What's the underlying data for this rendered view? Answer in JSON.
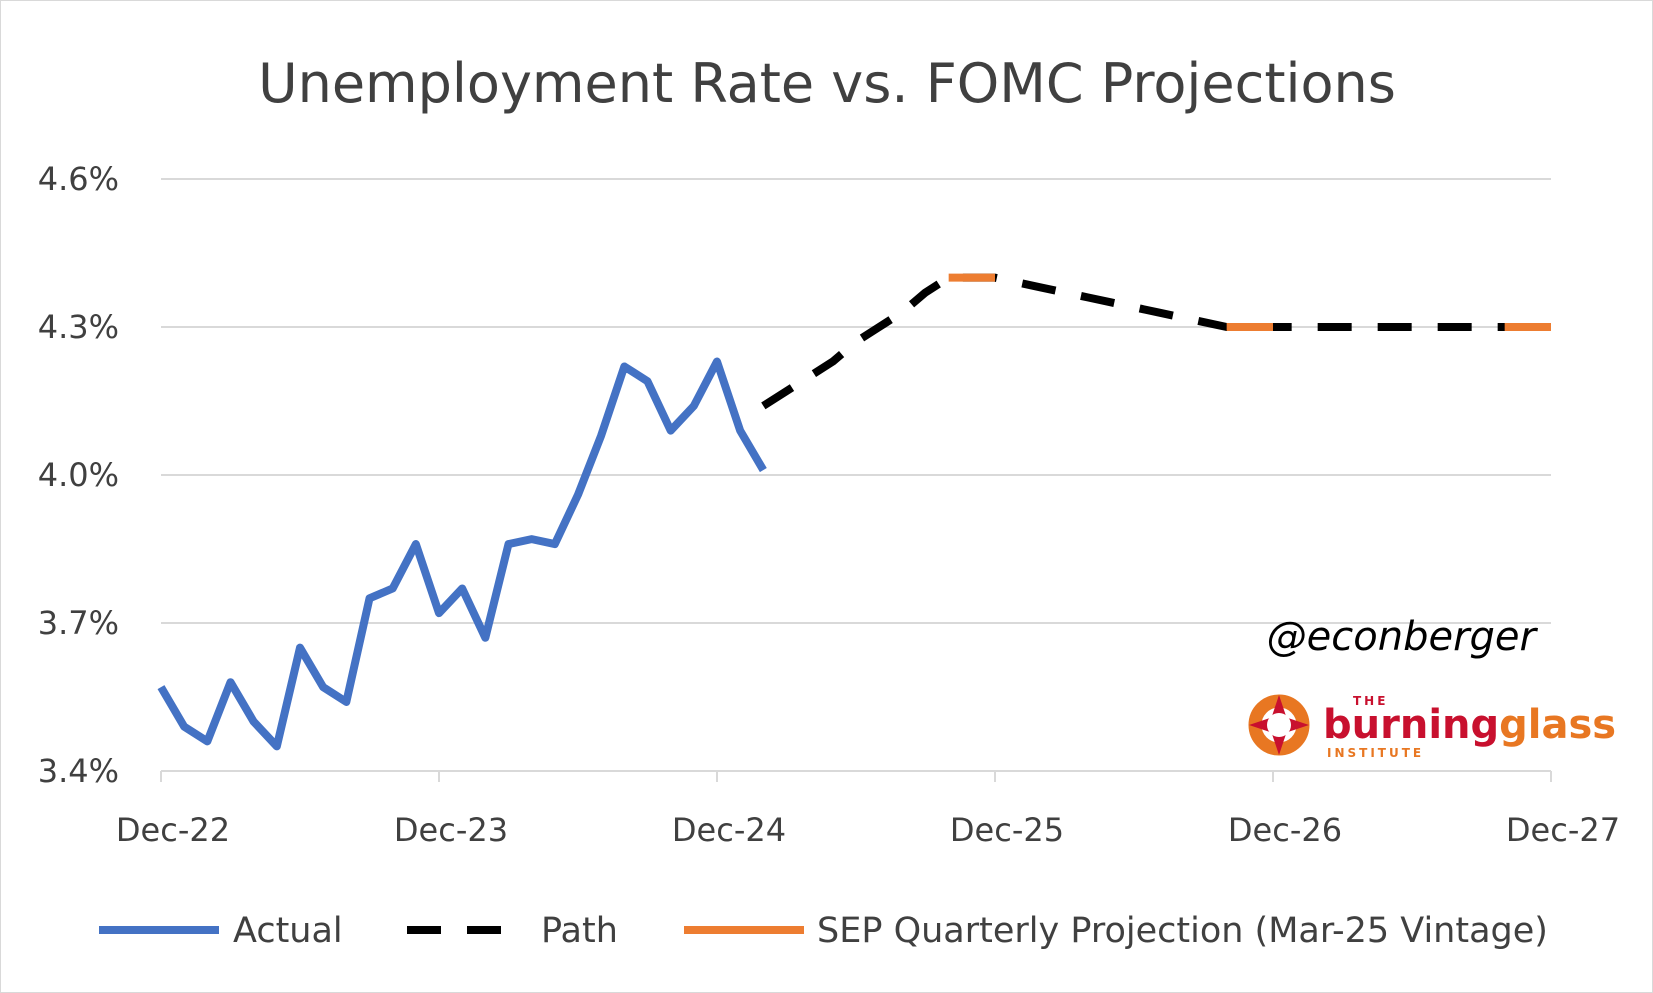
{
  "chart_data": {
    "type": "line",
    "title": "Unemployment Rate vs. FOMC Projections",
    "xlabel": "",
    "ylabel": "",
    "ylim": [
      3.4,
      4.6
    ],
    "y_ticks": [
      {
        "value": 3.4,
        "label": "3.4%"
      },
      {
        "value": 3.7,
        "label": "3.7%"
      },
      {
        "value": 4.0,
        "label": "4.0%"
      },
      {
        "value": 4.3,
        "label": "4.3%"
      },
      {
        "value": 4.6,
        "label": "4.6%"
      }
    ],
    "x_ticks": [
      {
        "month": 0,
        "label": "Dec-22"
      },
      {
        "month": 12,
        "label": "Dec-23"
      },
      {
        "month": 24,
        "label": "Dec-24"
      },
      {
        "month": 36,
        "label": "Dec-25"
      },
      {
        "month": 48,
        "label": "Dec-26"
      },
      {
        "month": 60,
        "label": "Dec-27"
      }
    ],
    "grid": true,
    "legend_position": "bottom",
    "series": [
      {
        "name": "Actual",
        "style": "solid",
        "color": "#4472c4",
        "x": [
          0,
          1,
          2,
          3,
          4,
          5,
          6,
          7,
          8,
          9,
          10,
          11,
          12,
          13,
          14,
          15,
          16,
          17,
          18,
          19,
          20,
          21,
          22,
          23,
          24,
          25,
          26
        ],
        "values": [
          3.57,
          3.49,
          3.46,
          3.58,
          3.5,
          3.45,
          3.65,
          3.57,
          3.54,
          3.75,
          3.77,
          3.86,
          3.72,
          3.77,
          3.67,
          3.86,
          3.87,
          3.86,
          3.96,
          4.08,
          4.22,
          4.19,
          4.09,
          4.14,
          4.23,
          4.09,
          4.01
        ]
      },
      {
        "name": "Path",
        "style": "dashed",
        "color": "#000000",
        "x": [
          26,
          27,
          28,
          29,
          30,
          31,
          32,
          33,
          34,
          35,
          36,
          37,
          38,
          39,
          40,
          41,
          42,
          43,
          44,
          45,
          46,
          47,
          48,
          49,
          50,
          51,
          52,
          53,
          54,
          55,
          56,
          57,
          58,
          59,
          60
        ],
        "values": [
          4.14,
          4.17,
          4.2,
          4.23,
          4.27,
          4.3,
          4.33,
          4.37,
          4.4,
          4.4,
          4.4,
          4.39,
          4.38,
          4.37,
          4.36,
          4.35,
          4.34,
          4.33,
          4.32,
          4.31,
          4.3,
          4.3,
          4.3,
          4.3,
          4.3,
          4.3,
          4.3,
          4.3,
          4.3,
          4.3,
          4.3,
          4.3,
          4.3,
          4.3,
          4.3
        ]
      },
      {
        "name": "SEP Quarterly Projection (Mar-25 Vintage)",
        "style": "solid",
        "color": "#ed7d31",
        "segments": [
          {
            "x": [
              34,
              36
            ],
            "values": [
              4.4,
              4.4
            ]
          },
          {
            "x": [
              46,
              48
            ],
            "values": [
              4.3,
              4.3
            ]
          },
          {
            "x": [
              58,
              60
            ],
            "values": [
              4.3,
              4.3
            ]
          }
        ]
      }
    ],
    "annotation": "@econberger"
  },
  "logo": {
    "the": "THE",
    "brand_a": "burning",
    "brand_b": "glass",
    "institute": "INSTITUTE",
    "colors": {
      "red": "#c8102e",
      "orange": "#e87722"
    }
  }
}
